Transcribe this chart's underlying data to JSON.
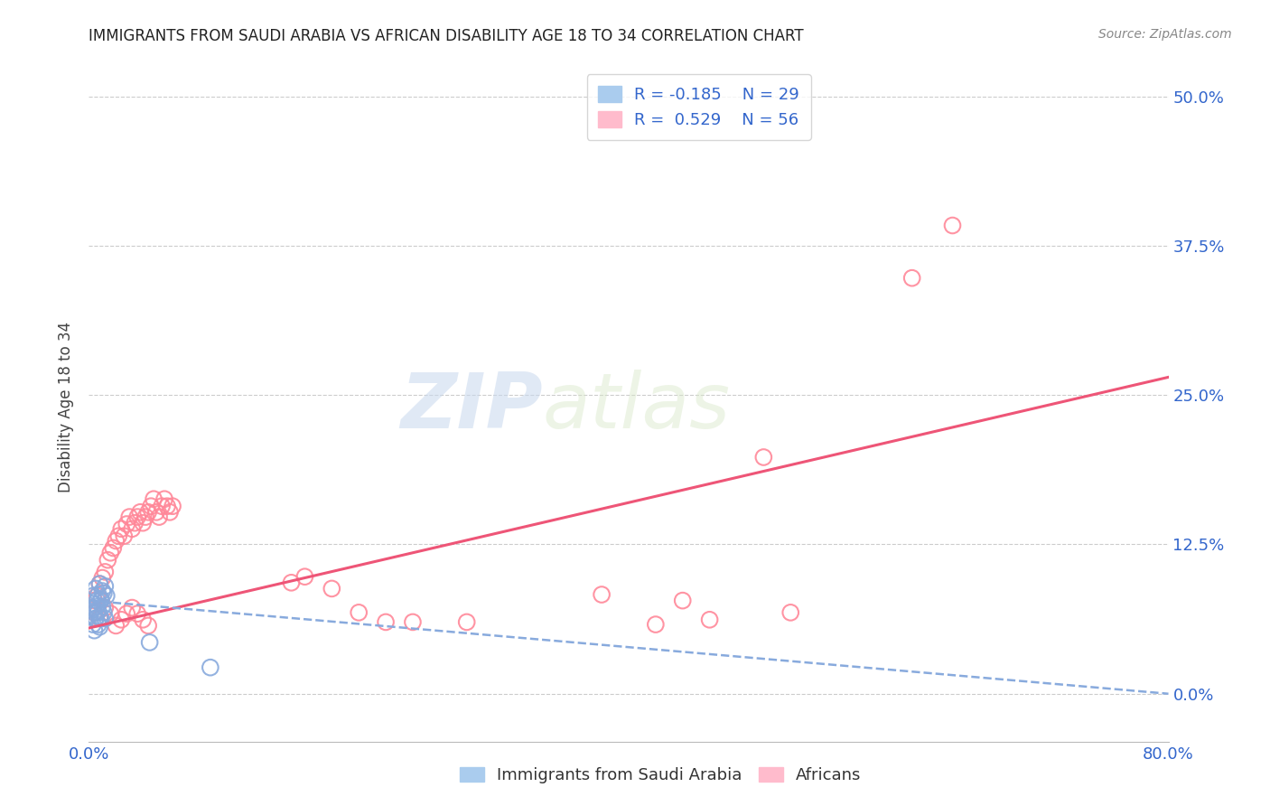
{
  "title": "IMMIGRANTS FROM SAUDI ARABIA VS AFRICAN DISABILITY AGE 18 TO 34 CORRELATION CHART",
  "source": "Source: ZipAtlas.com",
  "ylabel": "Disability Age 18 to 34",
  "xlim": [
    0.0,
    0.8
  ],
  "ylim": [
    -0.04,
    0.52
  ],
  "yticks": [
    0.0,
    0.125,
    0.25,
    0.375,
    0.5
  ],
  "ytick_labels": [
    "0.0%",
    "12.5%",
    "25.0%",
    "37.5%",
    "50.0%"
  ],
  "xticks": [
    0.0,
    0.2,
    0.4,
    0.6,
    0.8
  ],
  "xtick_labels": [
    "0.0%",
    "",
    "",
    "",
    "80.0%"
  ],
  "grid_color": "#cccccc",
  "background_color": "#ffffff",
  "saudi_color": "#88aadd",
  "african_color": "#ff8899",
  "saudi_line_color": "#88aadd",
  "african_line_color": "#ee5577",
  "saudi_R": -0.185,
  "saudi_N": 29,
  "african_R": 0.529,
  "african_N": 56,
  "watermark_zip": "ZIP",
  "watermark_atlas": "atlas",
  "saudi_points_x": [
    0.003,
    0.005,
    0.006,
    0.007,
    0.008,
    0.009,
    0.01,
    0.011,
    0.012,
    0.013,
    0.003,
    0.004,
    0.005,
    0.006,
    0.007,
    0.008,
    0.009,
    0.01,
    0.011,
    0.012,
    0.003,
    0.004,
    0.005,
    0.006,
    0.007,
    0.008,
    0.009,
    0.045,
    0.09
  ],
  "saudi_points_y": [
    0.082,
    0.088,
    0.078,
    0.083,
    0.092,
    0.079,
    0.086,
    0.084,
    0.09,
    0.082,
    0.072,
    0.068,
    0.063,
    0.073,
    0.069,
    0.064,
    0.078,
    0.073,
    0.068,
    0.063,
    0.058,
    0.053,
    0.063,
    0.068,
    0.058,
    0.056,
    0.063,
    0.043,
    0.022
  ],
  "african_points_x": [
    0.004,
    0.006,
    0.008,
    0.01,
    0.012,
    0.014,
    0.016,
    0.018,
    0.02,
    0.022,
    0.024,
    0.026,
    0.028,
    0.03,
    0.032,
    0.034,
    0.036,
    0.038,
    0.04,
    0.042,
    0.044,
    0.046,
    0.048,
    0.05,
    0.052,
    0.054,
    0.056,
    0.058,
    0.06,
    0.062,
    0.004,
    0.008,
    0.012,
    0.016,
    0.02,
    0.024,
    0.028,
    0.032,
    0.036,
    0.04,
    0.044,
    0.15,
    0.16,
    0.18,
    0.2,
    0.22,
    0.24,
    0.28,
    0.38,
    0.42,
    0.44,
    0.46,
    0.5,
    0.52,
    0.61,
    0.64
  ],
  "african_points_y": [
    0.078,
    0.082,
    0.092,
    0.097,
    0.102,
    0.112,
    0.118,
    0.122,
    0.128,
    0.132,
    0.138,
    0.132,
    0.142,
    0.148,
    0.138,
    0.143,
    0.148,
    0.152,
    0.143,
    0.148,
    0.152,
    0.157,
    0.163,
    0.152,
    0.148,
    0.157,
    0.163,
    0.157,
    0.152,
    0.157,
    0.068,
    0.063,
    0.072,
    0.067,
    0.057,
    0.062,
    0.067,
    0.072,
    0.067,
    0.062,
    0.057,
    0.093,
    0.098,
    0.088,
    0.068,
    0.06,
    0.06,
    0.06,
    0.083,
    0.058,
    0.078,
    0.062,
    0.198,
    0.068,
    0.348,
    0.392
  ]
}
